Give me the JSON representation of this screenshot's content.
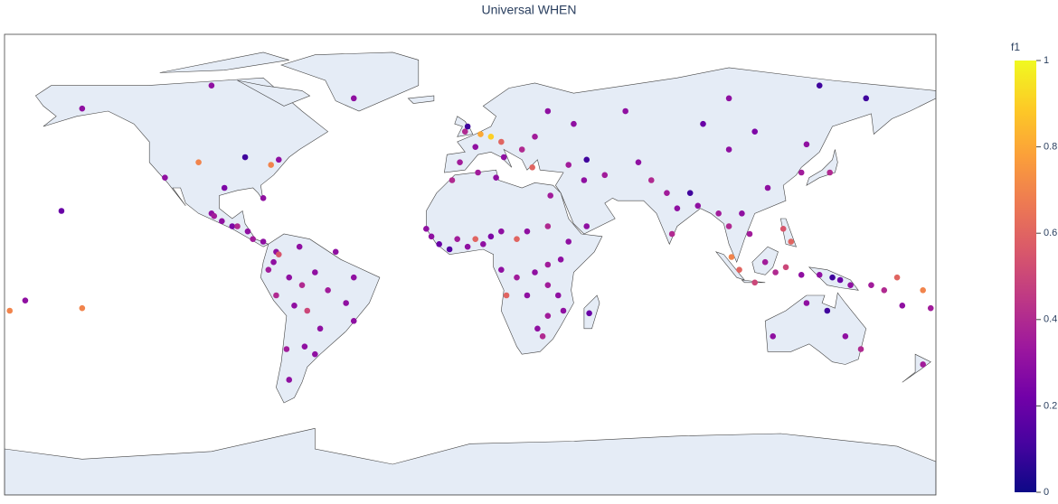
{
  "chart_data": {
    "type": "scattergeo",
    "title": "Universal WHEN",
    "colorbar_title": "f1",
    "clim": [
      0,
      1
    ],
    "cticks": [
      0,
      0.2,
      0.4,
      0.6,
      0.8,
      1
    ],
    "colorscale": [
      "#0d0887",
      "#46039f",
      "#7201a8",
      "#9c179e",
      "#bd3786",
      "#d8576b",
      "#ed7953",
      "#fb9f3a",
      "#fdca26",
      "#f0f921"
    ],
    "lon": [
      -118,
      -105,
      -95,
      -87,
      -77,
      -74,
      -80,
      -100,
      -99,
      -96,
      -92,
      -90,
      -86,
      -84,
      -80,
      -75,
      -74,
      -76,
      -78,
      -70,
      -65,
      -60,
      -55,
      -48,
      -45,
      -75,
      -68,
      -63,
      -58,
      -64,
      -71,
      -45,
      -52,
      -66,
      -150,
      -158,
      -172,
      -178,
      -150,
      -2,
      -1,
      4,
      8,
      12,
      2,
      -4,
      13,
      20,
      25,
      30,
      40,
      24,
      38,
      45,
      44,
      52,
      65,
      70,
      76,
      80,
      78,
      88,
      85,
      96,
      100,
      105,
      108,
      100,
      90,
      110,
      130,
      128,
      139,
      115,
      -17,
      -15,
      -12,
      -8,
      -5,
      -1,
      2,
      5,
      8,
      12,
      18,
      22,
      30,
      38,
      35,
      30,
      25,
      18,
      12,
      14,
      22,
      30,
      34,
      36,
      30,
      26,
      28,
      46,
      -7,
      3,
      10,
      31,
      45,
      101,
      104,
      110,
      114,
      118,
      121,
      124,
      122,
      128,
      135,
      140,
      143,
      147,
      155,
      160,
      167,
      178,
      130,
      138,
      145,
      151,
      117,
      175,
      -45,
      135,
      100,
      60,
      -100,
      -60,
      -70,
      153,
      175,
      165
    ],
    "lat": [
      34,
      40,
      30,
      42,
      39,
      41,
      26,
      20,
      19,
      17,
      15,
      15,
      13,
      10,
      9,
      5,
      4,
      1,
      -2,
      -5,
      -8,
      -3,
      -10,
      -15,
      -5,
      -12,
      -16,
      -18,
      -25,
      -32,
      -33,
      -22,
      5,
      7,
      61,
      21,
      -14,
      -18,
      -17,
      52,
      54,
      51,
      50,
      48,
      46,
      40,
      42,
      45,
      50,
      60,
      55,
      38,
      39,
      41,
      33,
      35,
      40,
      33,
      28,
      22,
      12,
      23,
      28,
      20,
      15,
      20,
      12,
      45,
      55,
      52,
      47,
      36,
      36,
      30,
      14,
      11,
      8,
      6,
      10,
      7,
      10,
      8,
      11,
      13,
      10,
      13,
      15,
      9,
      2,
      0,
      -3,
      -5,
      -2,
      -12,
      -12,
      -8,
      -12,
      -18,
      -20,
      -25,
      -28,
      -19,
      33,
      36,
      34,
      27,
      15,
      3,
      -2,
      -7,
      1,
      -3,
      14,
      9,
      -1,
      -4,
      -4,
      -5,
      -6,
      -8,
      -8,
      -10,
      -16,
      -17,
      -15,
      -18,
      -28,
      -33,
      -28,
      -39,
      65,
      70,
      65,
      60,
      70,
      -35,
      -45,
      65,
      -10,
      -5
    ],
    "values": [
      0.3,
      0.7,
      0.25,
      0.1,
      0.7,
      0.3,
      0.3,
      0.3,
      0.35,
      0.3,
      0.25,
      0.4,
      0.3,
      0.35,
      0.3,
      0.3,
      0.55,
      0.3,
      0.35,
      0.3,
      0.4,
      0.3,
      0.35,
      0.3,
      0.3,
      0.4,
      0.3,
      0.5,
      0.3,
      0.3,
      0.35,
      0.3,
      0.3,
      0.3,
      0.3,
      0.2,
      0.3,
      0.7,
      0.7,
      0.4,
      0.1,
      0.8,
      0.9,
      0.6,
      0.3,
      0.35,
      0.3,
      0.4,
      0.35,
      0.3,
      0.3,
      0.6,
      0.35,
      0.1,
      0.3,
      0.35,
      0.3,
      0.4,
      0.35,
      0.3,
      0.4,
      0.3,
      0.1,
      0.35,
      0.4,
      0.3,
      0.35,
      0.3,
      0.2,
      0.25,
      0.3,
      0.35,
      0.4,
      0.3,
      0.3,
      0.3,
      0.2,
      0.15,
      0.35,
      0.3,
      0.6,
      0.3,
      0.25,
      0.3,
      0.6,
      0.3,
      0.4,
      0.3,
      0.3,
      0.35,
      0.3,
      0.35,
      0.3,
      0.6,
      0.3,
      0.35,
      0.3,
      0.3,
      0.35,
      0.3,
      0.4,
      0.2,
      0.4,
      0.35,
      0.3,
      0.35,
      0.3,
      0.7,
      0.6,
      0.5,
      0.35,
      0.4,
      0.55,
      0.6,
      0.5,
      0.3,
      0.3,
      0.1,
      0.2,
      0.3,
      0.35,
      0.4,
      0.3,
      0.35,
      0.3,
      0.1,
      0.3,
      0.4,
      0.3,
      0.35,
      0.3,
      0.1,
      0.3,
      0.3,
      0.3,
      0.3,
      0.3,
      0.1,
      0.7,
      0.6
    ]
  }
}
